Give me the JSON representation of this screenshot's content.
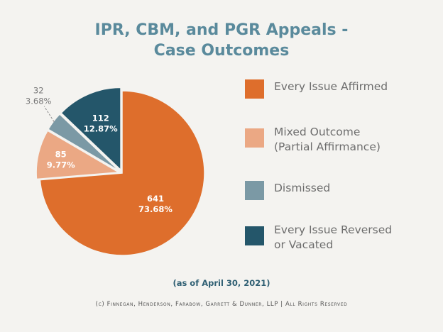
{
  "chart_data": {
    "type": "pie",
    "title_lines": [
      "IPR, CBM, and PGR Appeals -",
      "Case Outcomes"
    ],
    "categories": [
      "Every Issue Affirmed",
      "Mixed Outcome (Partial Affirmance)",
      "Dismissed",
      "Every Issue Reversed or Vacated"
    ],
    "values": [
      641,
      85,
      32,
      112
    ],
    "percent_labels": [
      "73.68%",
      "9.77%",
      "3.68%",
      "12.87%"
    ],
    "colors": [
      "#de6e2c",
      "#eba884",
      "#7b99a5",
      "#24566a"
    ],
    "legend": {
      "position": "right",
      "entries": [
        {
          "lines": [
            "Every Issue Affirmed"
          ],
          "color": "#de6e2c"
        },
        {
          "lines": [
            "Mixed Outcome",
            "(Partial Affirmance)"
          ],
          "color": "#eba884"
        },
        {
          "lines": [
            "Dismissed"
          ],
          "color": "#7b99a5"
        },
        {
          "lines": [
            "Every Issue Reversed",
            "or Vacated"
          ],
          "color": "#24566a"
        }
      ]
    }
  },
  "footer": {
    "as_of": "(as of April 30, 2021)",
    "copyright": "(c) Finnegan, Henderson, Farabow, Garrett & Dunner, LLP | All Rights Reserved"
  }
}
